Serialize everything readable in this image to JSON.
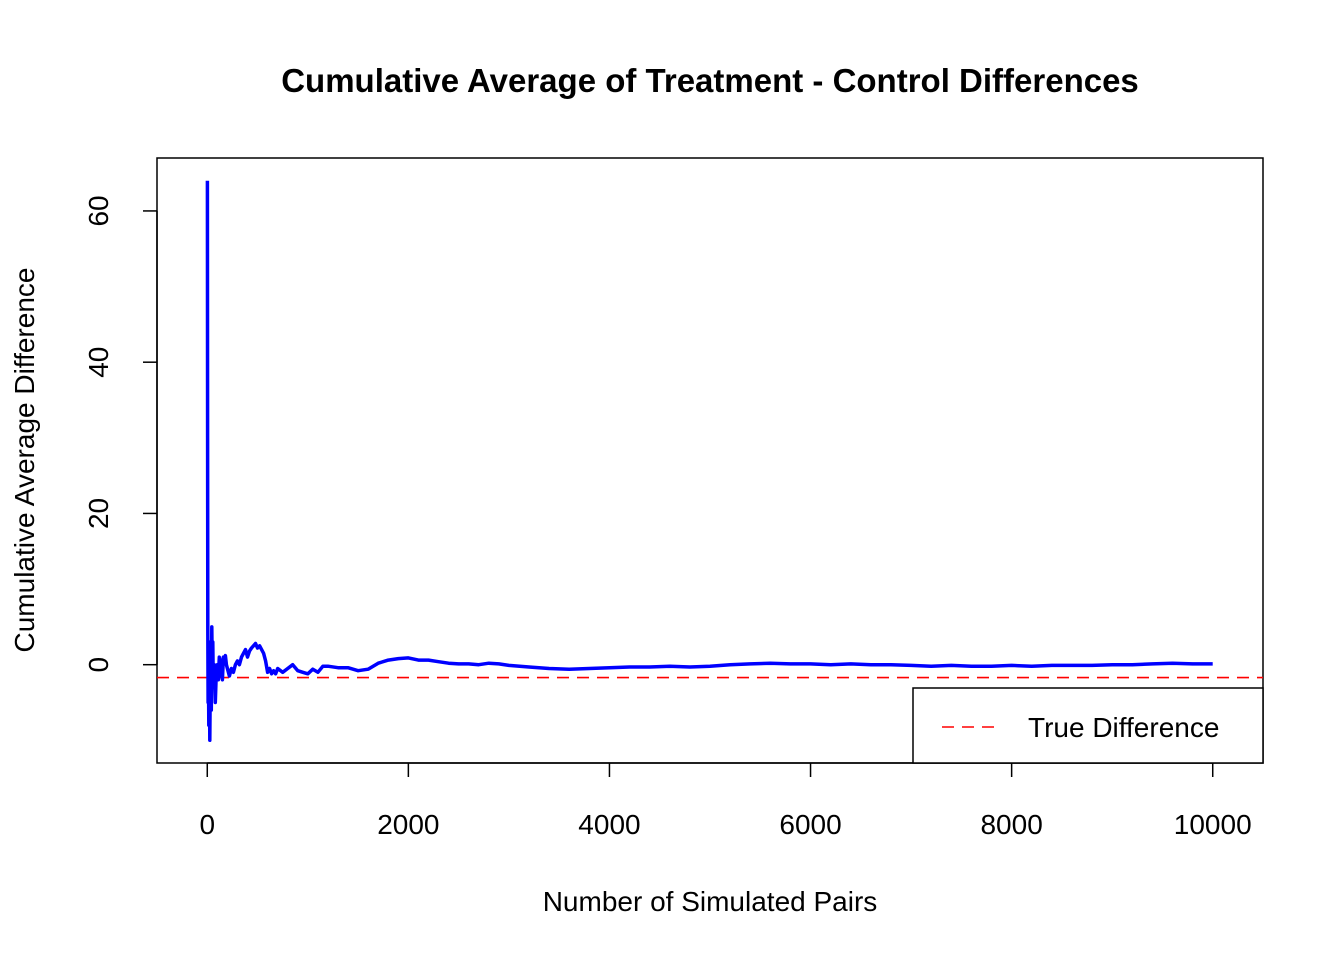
{
  "chart_data": {
    "type": "line",
    "title": "Cumulative Average of Treatment - Control Differences",
    "xlabel": "Number of Simulated Pairs",
    "ylabel": "Cumulative Average Difference",
    "xlim": [
      -500,
      10500
    ],
    "ylim": [
      -13,
      67
    ],
    "x_ticks": [
      0,
      2000,
      4000,
      6000,
      8000,
      10000
    ],
    "y_ticks": [
      0,
      20,
      40,
      60
    ],
    "grid": false,
    "series": [
      {
        "color": "#0000ff",
        "x": [
          1,
          3,
          5,
          8,
          10,
          15,
          20,
          25,
          30,
          35,
          40,
          45,
          50,
          55,
          60,
          70,
          80,
          90,
          100,
          110,
          120,
          130,
          140,
          150,
          160,
          170,
          180,
          190,
          200,
          220,
          240,
          260,
          280,
          300,
          320,
          340,
          360,
          380,
          400,
          420,
          440,
          460,
          480,
          500,
          520,
          540,
          560,
          580,
          600,
          620,
          640,
          660,
          680,
          700,
          750,
          800,
          850,
          900,
          950,
          1000,
          1050,
          1100,
          1150,
          1200,
          1300,
          1400,
          1500,
          1600,
          1700,
          1800,
          1900,
          2000,
          2100,
          2200,
          2300,
          2400,
          2500,
          2600,
          2700,
          2800,
          2900,
          3000,
          3200,
          3400,
          3600,
          3800,
          4000,
          4200,
          4400,
          4600,
          4800,
          5000,
          5200,
          5400,
          5600,
          5800,
          6000,
          6200,
          6400,
          6600,
          6800,
          7000,
          7200,
          7400,
          7600,
          7800,
          8000,
          8200,
          8400,
          8600,
          8800,
          9000,
          9200,
          9400,
          9600,
          9800,
          10000
        ],
        "y": [
          64,
          30,
          5,
          -5,
          2,
          -8,
          3,
          -10,
          -2,
          1,
          -6,
          5,
          -1,
          3,
          -3,
          0,
          -5,
          -1,
          0,
          -2,
          1,
          0.5,
          -1,
          -2,
          1,
          0.8,
          1.2,
          0,
          -0.5,
          -1.5,
          -0.5,
          -1,
          0,
          0.5,
          0,
          1,
          1.5,
          2,
          1,
          1.8,
          2.2,
          2.5,
          2.8,
          2.2,
          2.5,
          2,
          1.5,
          0.5,
          -1,
          -0.5,
          -1.2,
          -0.8,
          -1.2,
          -0.5,
          -1,
          -0.5,
          0,
          -0.8,
          -1,
          -1.2,
          -0.6,
          -1,
          -0.2,
          -0.2,
          -0.4,
          -0.4,
          -0.8,
          -0.6,
          0.2,
          0.6,
          0.8,
          0.9,
          0.6,
          0.6,
          0.4,
          0.2,
          0.1,
          0.1,
          0.0,
          0.2,
          0.1,
          -0.1,
          -0.3,
          -0.5,
          -0.6,
          -0.5,
          -0.4,
          -0.3,
          -0.3,
          -0.2,
          -0.3,
          -0.2,
          0.0,
          0.1,
          0.2,
          0.1,
          0.1,
          0.0,
          0.1,
          0.0,
          0.0,
          -0.1,
          -0.2,
          -0.1,
          -0.2,
          -0.2,
          -0.1,
          -0.2,
          -0.1,
          -0.1,
          -0.1,
          0.0,
          0.0,
          0.1,
          0.2,
          0.1,
          0.1
        ]
      }
    ],
    "reference_line": {
      "y": -1.7,
      "color": "#ff0000",
      "style": "dashed",
      "name": "True Difference"
    },
    "legend": {
      "position": "bottom-right",
      "entries": [
        "True Difference"
      ]
    }
  }
}
